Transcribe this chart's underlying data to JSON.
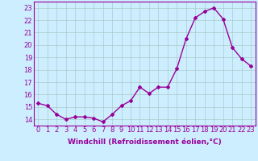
{
  "x": [
    0,
    1,
    2,
    3,
    4,
    5,
    6,
    7,
    8,
    9,
    10,
    11,
    12,
    13,
    14,
    15,
    16,
    17,
    18,
    19,
    20,
    21,
    22,
    23
  ],
  "y": [
    15.3,
    15.1,
    14.4,
    14.0,
    14.2,
    14.2,
    14.1,
    13.8,
    14.4,
    15.1,
    15.5,
    16.6,
    16.1,
    16.6,
    16.6,
    18.1,
    20.5,
    22.2,
    22.7,
    23.0,
    22.1,
    19.8,
    18.9,
    18.3
  ],
  "line_color": "#990099",
  "marker": "D",
  "marker_size": 2,
  "bg_color": "#cceeff",
  "grid_color": "#aacccc",
  "xlabel": "Windchill (Refroidissement éolien,°C)",
  "ylim": [
    13.5,
    23.5
  ],
  "yticks": [
    14,
    15,
    16,
    17,
    18,
    19,
    20,
    21,
    22,
    23
  ],
  "xticks": [
    0,
    1,
    2,
    3,
    4,
    5,
    6,
    7,
    8,
    9,
    10,
    11,
    12,
    13,
    14,
    15,
    16,
    17,
    18,
    19,
    20,
    21,
    22,
    23
  ],
  "xlabel_fontsize": 6.5,
  "tick_fontsize": 6,
  "line_width": 1.0
}
